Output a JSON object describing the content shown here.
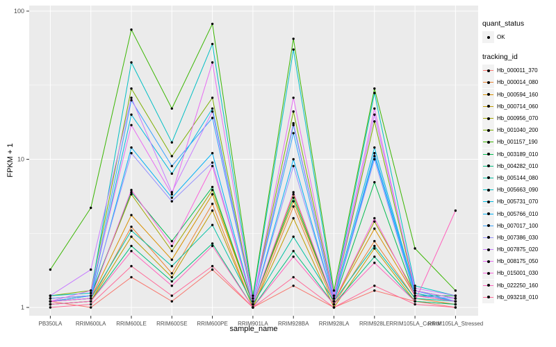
{
  "chart_data": {
    "type": "line",
    "title": "",
    "xlabel": "sample_name",
    "ylabel": "FPKM + 1",
    "y_scale": "log10",
    "y_ticks": [
      1,
      10,
      100
    ],
    "ylim": [
      0.9,
      110
    ],
    "grid": "on",
    "panel_color": "#EBEBEB",
    "grid_color": "#FFFFFF",
    "point_color": "#000000",
    "point_shape": "circle",
    "legend_position": "right",
    "legend": {
      "quant_status_title": "quant_status",
      "quant_status_items": [
        "OK"
      ],
      "tracking_id_title": "tracking_id"
    },
    "x_categories": [
      "PB350LA",
      "RRIM600LA",
      "RRIM600LE",
      "RRIM600SE",
      "RRIM600PE",
      "RRIM901LA",
      "RRIM928BA",
      "RRIM928LA",
      "RRIM928LE",
      "RRIM105LA_Control",
      "RRIM105LA_Stressed"
    ],
    "series": [
      {
        "name": "Hb_000011_370",
        "color": "#F8766D",
        "values": [
          1.1,
          1.0,
          1.6,
          1.1,
          1.8,
          1.0,
          1.4,
          1.0,
          1.3,
          1.1,
          1.0
        ]
      },
      {
        "name": "Hb_000014_080",
        "color": "#EA8331",
        "values": [
          1.05,
          1.1,
          3.5,
          1.7,
          5.0,
          1.0,
          4.8,
          1.05,
          2.8,
          1.15,
          1.05
        ]
      },
      {
        "name": "Hb_000594_160",
        "color": "#D89000",
        "values": [
          1.1,
          1.15,
          4.2,
          2.1,
          5.8,
          1.05,
          5.2,
          1.1,
          3.4,
          1.2,
          1.1
        ]
      },
      {
        "name": "Hb_000714_060",
        "color": "#C09B00",
        "values": [
          1.05,
          1.1,
          3.0,
          1.6,
          4.5,
          1.0,
          4.0,
          1.0,
          2.5,
          1.1,
          1.05
        ]
      },
      {
        "name": "Hb_000956_070",
        "color": "#A3A500",
        "values": [
          1.15,
          1.2,
          5.8,
          2.4,
          6.2,
          1.05,
          5.8,
          1.1,
          3.8,
          1.25,
          1.1
        ]
      },
      {
        "name": "Hb_001040_200",
        "color": "#7CAE00",
        "values": [
          1.2,
          1.3,
          30,
          10.5,
          26,
          1.1,
          21,
          1.15,
          18,
          1.3,
          1.15
        ]
      },
      {
        "name": "Hb_001157_190",
        "color": "#39B600",
        "values": [
          1.8,
          4.7,
          75,
          22,
          82,
          1.2,
          65,
          1.3,
          30,
          2.5,
          1.3
        ]
      },
      {
        "name": "Hb_003189_010",
        "color": "#00BB4E",
        "values": [
          1.1,
          1.2,
          6.0,
          2.8,
          6.5,
          1.05,
          5.5,
          1.1,
          7.0,
          1.2,
          1.2
        ]
      },
      {
        "name": "Hb_004282_010",
        "color": "#00BF7D",
        "values": [
          1.05,
          1.1,
          2.6,
          1.5,
          2.7,
          1.0,
          2.4,
          1.05,
          2.2,
          1.1,
          1.05
        ]
      },
      {
        "name": "Hb_005144_080",
        "color": "#00C1A3",
        "values": [
          1.1,
          1.15,
          3.3,
          1.9,
          3.6,
          1.05,
          3.0,
          1.1,
          2.6,
          1.15,
          1.1
        ]
      },
      {
        "name": "Hb_005663_090",
        "color": "#00BFC4",
        "values": [
          1.2,
          1.25,
          45,
          13,
          60,
          1.15,
          55,
          1.2,
          28,
          1.4,
          1.2
        ]
      },
      {
        "name": "Hb_005731_070",
        "color": "#00BAE0",
        "values": [
          1.15,
          1.2,
          20,
          8,
          22,
          1.1,
          17,
          1.15,
          12,
          1.3,
          1.15
        ]
      },
      {
        "name": "Hb_005766_010",
        "color": "#00B0F6",
        "values": [
          1.1,
          1.15,
          12,
          5.5,
          11,
          1.05,
          10,
          1.1,
          10.5,
          1.25,
          1.1
        ]
      },
      {
        "name": "Hb_007017_100",
        "color": "#35A2FF",
        "values": [
          1.1,
          1.2,
          25,
          9,
          19,
          1.1,
          15,
          1.1,
          11,
          1.3,
          1.1
        ]
      },
      {
        "name": "Hb_007386_030",
        "color": "#9590FF",
        "values": [
          1.15,
          1.2,
          11,
          5.2,
          9.5,
          1.05,
          9,
          1.1,
          10,
          1.2,
          1.15
        ]
      },
      {
        "name": "Hb_007875_020",
        "color": "#C77CFF",
        "values": [
          1.2,
          1.8,
          26,
          6.0,
          21,
          1.1,
          17.5,
          1.15,
          20,
          1.35,
          1.2
        ]
      },
      {
        "name": "Hb_008175_050",
        "color": "#E76BF3",
        "values": [
          1.1,
          1.3,
          17,
          5.8,
          45,
          1.1,
          26,
          1.2,
          22,
          1.3,
          1.15
        ]
      },
      {
        "name": "Hb_015001_030",
        "color": "#FA62DB",
        "values": [
          1.1,
          1.15,
          6.2,
          2.6,
          9,
          1.05,
          6,
          1.1,
          4.0,
          1.2,
          1.1
        ]
      },
      {
        "name": "Hb_022250_160",
        "color": "#FF62BC",
        "values": [
          1.05,
          1.1,
          2.4,
          1.4,
          2.6,
          1.0,
          2.2,
          1.05,
          2.0,
          1.1,
          4.5
        ]
      },
      {
        "name": "Hb_093218_010",
        "color": "#FF6A98",
        "values": [
          1.0,
          1.05,
          1.9,
          1.2,
          1.9,
          1.0,
          1.6,
          1.0,
          1.4,
          1.05,
          1.0
        ]
      }
    ]
  }
}
